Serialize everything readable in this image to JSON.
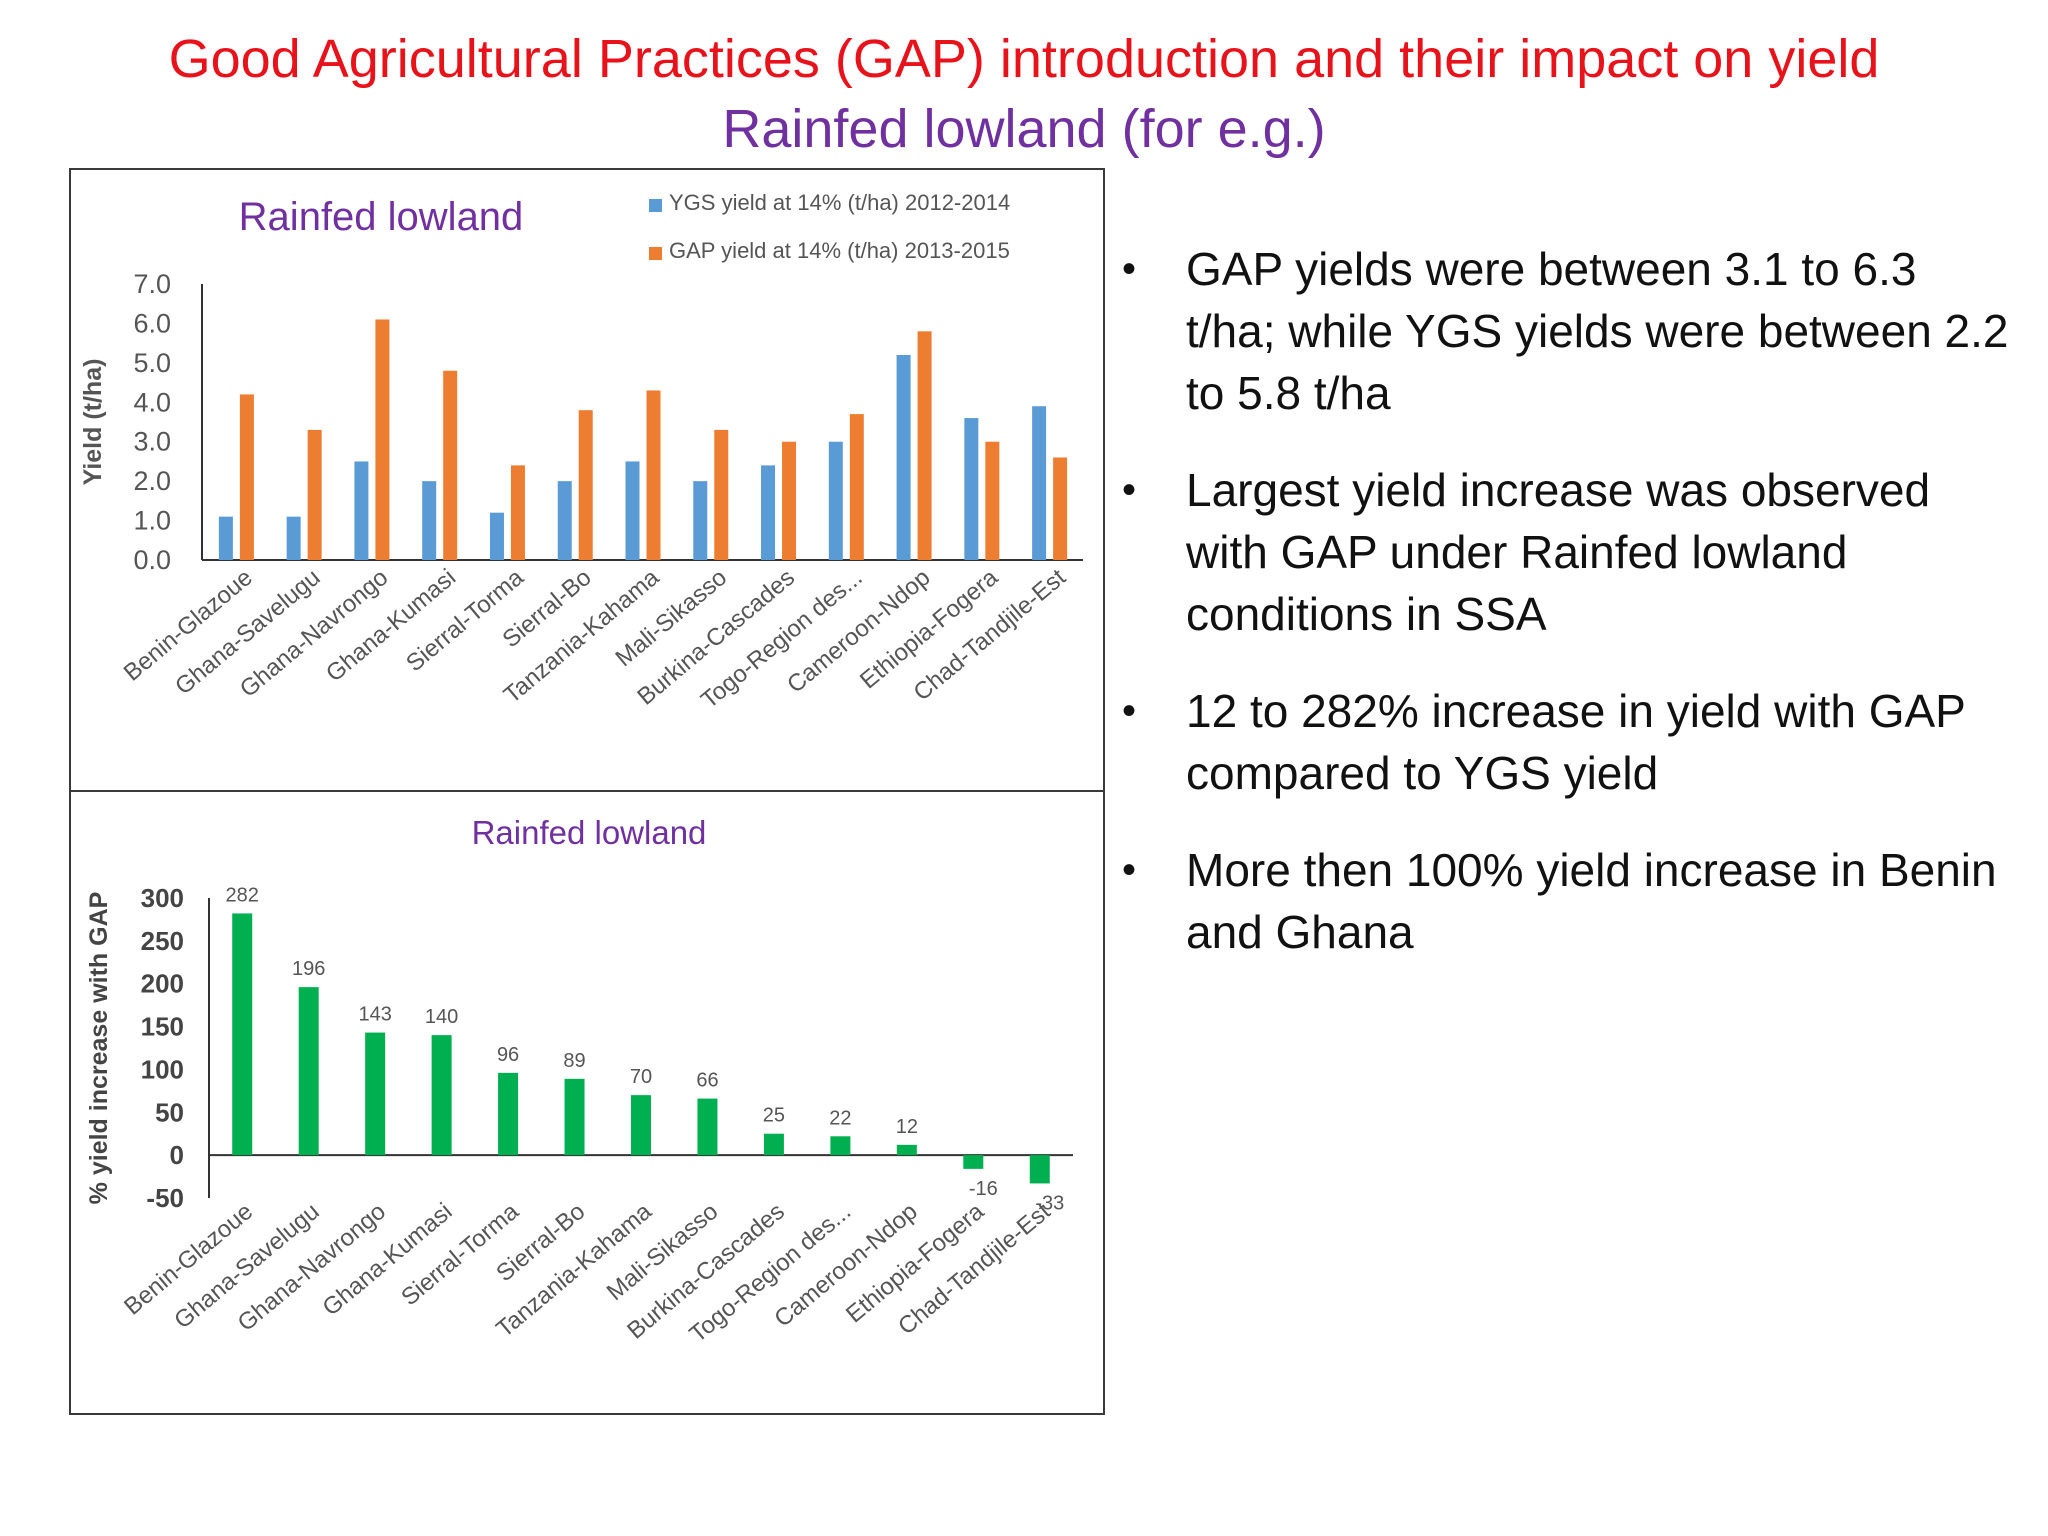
{
  "slide": {
    "title": "Good Agricultural Practices (GAP) introduction and their impact on yield",
    "subtitle": "Rainfed lowland (for e.g.)",
    "bullets": [
      "GAP yields were between 3.1 to 6.3 t/ha; while YGS yields were between 2.2 to 5.8 t/ha",
      "Largest yield increase was observed with GAP under Rainfed lowland conditions in SSA",
      "12 to 282% increase in yield with GAP compared to YGS yield",
      "More then 100% yield increase in Benin and Ghana"
    ],
    "bullet_symbol": "•"
  },
  "colors": {
    "title": "#e8121b",
    "subtitle": "#7030a0",
    "ygs": "#5b9bd5",
    "gap": "#ed7d31",
    "increase": "#00b050",
    "chart_title": "#7030a0"
  },
  "chart_data": [
    {
      "type": "bar",
      "title": "Rainfed lowland",
      "ylabel": "Yield (t/ha)",
      "xlabel": "",
      "ylim": [
        0,
        7
      ],
      "yticks": [
        "0.0",
        "1.0",
        "2.0",
        "3.0",
        "4.0",
        "5.0",
        "6.0",
        "7.0"
      ],
      "legend_position": "top-right",
      "categories": [
        "Benin-Glazoue",
        "Ghana-Savelugu",
        "Ghana-Navrongo",
        "Ghana-Kumasi",
        "Sierral-Torma",
        "Sierral-Bo",
        "Tanzania-Kahama",
        "Mali-Sikasso",
        "Burkina-Cascades",
        "Togo-Region des...",
        "Cameroon-Ndop",
        "Ethiopia-Fogera",
        "Chad-Tandjile-Est"
      ],
      "series": [
        {
          "name": "YGS yield at 14% (t/ha) 2012-2014",
          "values": [
            1.1,
            1.1,
            2.5,
            2.0,
            1.2,
            2.0,
            2.5,
            2.0,
            2.4,
            3.0,
            5.2,
            3.6,
            3.9
          ]
        },
        {
          "name": "GAP yield at 14% (t/ha) 2013-2015",
          "values": [
            4.2,
            3.3,
            6.1,
            4.8,
            2.4,
            3.8,
            4.3,
            3.3,
            3.0,
            3.7,
            5.8,
            3.0,
            2.6
          ]
        }
      ]
    },
    {
      "type": "bar",
      "title": "Rainfed lowland",
      "ylabel": "% yield increase with GAP",
      "xlabel": "",
      "ylim": [
        -50,
        300
      ],
      "yticks": [
        "-50",
        "0",
        "50",
        "100",
        "150",
        "200",
        "250",
        "300"
      ],
      "categories": [
        "Benin-Glazoue",
        "Ghana-Savelugu",
        "Ghana-Navrongo",
        "Ghana-Kumasi",
        "Sierral-Torma",
        "Sierral-Bo",
        "Tanzania-Kahama",
        "Mali-Sikasso",
        "Burkina-Cascades",
        "Togo-Region des...",
        "Cameroon-Ndop",
        "Ethiopia-Fogera",
        "Chad-Tandjile-Est"
      ],
      "values": [
        282,
        196,
        143,
        140,
        96,
        89,
        70,
        66,
        25,
        22,
        12,
        -16,
        -33
      ],
      "data_labels": [
        "282",
        "196",
        "143",
        "140",
        "96",
        "89",
        "70",
        "66",
        "25",
        "22",
        "12",
        "-16",
        "-33"
      ]
    }
  ]
}
